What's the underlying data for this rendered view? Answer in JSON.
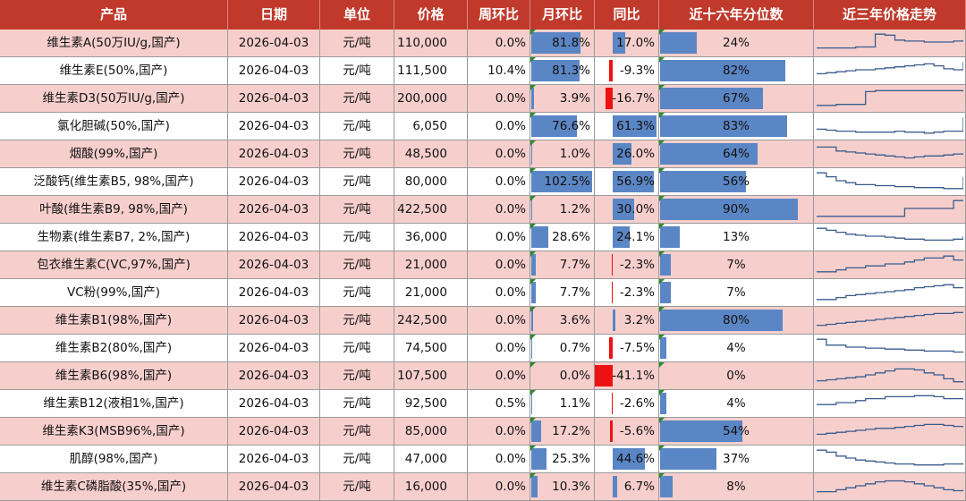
{
  "chart_data": {
    "type": "table",
    "columns": [
      "产品",
      "日期",
      "单位",
      "价格",
      "周环比",
      "月环比",
      "同比",
      "近十六年分位数",
      "近三年价格走势"
    ],
    "rows": [
      {
        "name": "维生素A(50万IU/g,国产)",
        "date": "2026-04-03",
        "unit": "元/吨",
        "price": "110,000",
        "wow": "0.0%",
        "mom": "81.8%",
        "mom_v": 81.8,
        "yoy": "17.0%",
        "yoy_v": 17.0,
        "pctl": "24%",
        "pctl_v": 24,
        "trend": [
          0.2,
          0.2,
          0.2,
          0.2,
          0.25,
          0.25,
          0.9,
          0.85,
          0.6,
          0.55,
          0.55,
          0.5,
          0.5,
          0.5,
          0.55,
          0.6
        ]
      },
      {
        "name": "维生素E(50%,国产)",
        "date": "2026-04-03",
        "unit": "元/吨",
        "price": "111,500",
        "wow": "10.4%",
        "mom": "81.3%",
        "mom_v": 81.3,
        "yoy": "-9.3%",
        "yoy_v": -9.3,
        "pctl": "82%",
        "pctl_v": 82,
        "trend": [
          0.3,
          0.35,
          0.4,
          0.45,
          0.5,
          0.5,
          0.55,
          0.6,
          0.65,
          0.7,
          0.75,
          0.8,
          0.7,
          0.55,
          0.5,
          0.9
        ]
      },
      {
        "name": "维生素D3(50万IU/g,国产)",
        "date": "2026-04-03",
        "unit": "元/吨",
        "price": "200,000",
        "wow": "0.0%",
        "mom": "3.9%",
        "mom_v": 3.9,
        "yoy": "-16.7%",
        "yoy_v": -16.7,
        "pctl": "67%",
        "pctl_v": 67,
        "trend": [
          0.1,
          0.1,
          0.15,
          0.15,
          0.15,
          0.8,
          0.85,
          0.85,
          0.85,
          0.85,
          0.85,
          0.85,
          0.85,
          0.85,
          0.85,
          0.8
        ]
      },
      {
        "name": "氯化胆碱(50%,国产)",
        "date": "2026-04-03",
        "unit": "元/吨",
        "price": "6,050",
        "wow": "0.0%",
        "mom": "76.6%",
        "mom_v": 76.6,
        "yoy": "61.3%",
        "yoy_v": 61.3,
        "pctl": "83%",
        "pctl_v": 83,
        "trend": [
          0.3,
          0.25,
          0.2,
          0.2,
          0.15,
          0.15,
          0.15,
          0.15,
          0.2,
          0.15,
          0.15,
          0.1,
          0.15,
          0.2,
          0.2,
          0.9
        ]
      },
      {
        "name": "烟酸(99%,国产)",
        "date": "2026-04-03",
        "unit": "元/吨",
        "price": "48,500",
        "wow": "0.0%",
        "mom": "1.0%",
        "mom_v": 1.0,
        "yoy": "26.0%",
        "yoy_v": 26.0,
        "pctl": "64%",
        "pctl_v": 64,
        "trend": [
          0.8,
          0.8,
          0.6,
          0.55,
          0.5,
          0.45,
          0.4,
          0.35,
          0.3,
          0.25,
          0.3,
          0.35,
          0.35,
          0.4,
          0.45,
          0.5
        ]
      },
      {
        "name": "泛酸钙(维生素B5, 98%,国产)",
        "date": "2026-04-03",
        "unit": "元/吨",
        "price": "80,000",
        "wow": "0.0%",
        "mom": "102.5%",
        "mom_v": 102.5,
        "yoy": "56.9%",
        "yoy_v": 56.9,
        "pctl": "56%",
        "pctl_v": 56,
        "trend": [
          0.9,
          0.7,
          0.5,
          0.4,
          0.3,
          0.3,
          0.25,
          0.25,
          0.2,
          0.2,
          0.15,
          0.15,
          0.15,
          0.1,
          0.1,
          0.7
        ]
      },
      {
        "name": "叶酸(维生素B9, 98%,国产)",
        "date": "2026-04-03",
        "unit": "元/吨",
        "price": "422,500",
        "wow": "0.0%",
        "mom": "1.2%",
        "mom_v": 1.2,
        "yoy": "30.0%",
        "yoy_v": 30.0,
        "pctl": "90%",
        "pctl_v": 90,
        "trend": [
          0.1,
          0.1,
          0.1,
          0.1,
          0.1,
          0.1,
          0.1,
          0.1,
          0.1,
          0.5,
          0.5,
          0.5,
          0.5,
          0.5,
          0.9,
          0.9
        ]
      },
      {
        "name": "生物素(维生素B7, 2%,国产)",
        "date": "2026-04-03",
        "unit": "元/吨",
        "price": "36,000",
        "wow": "0.0%",
        "mom": "28.6%",
        "mom_v": 28.6,
        "yoy": "24.1%",
        "yoy_v": 24.1,
        "pctl": "13%",
        "pctl_v": 13,
        "trend": [
          0.9,
          0.8,
          0.7,
          0.6,
          0.55,
          0.5,
          0.5,
          0.45,
          0.4,
          0.35,
          0.35,
          0.3,
          0.3,
          0.3,
          0.35,
          0.5
        ]
      },
      {
        "name": "包衣维生素C(VC,97%,国产)",
        "date": "2026-04-03",
        "unit": "元/吨",
        "price": "21,000",
        "wow": "0.0%",
        "mom": "7.7%",
        "mom_v": 7.7,
        "yoy": "-2.3%",
        "yoy_v": -2.3,
        "pctl": "7%",
        "pctl_v": 7,
        "trend": [
          0.1,
          0.1,
          0.2,
          0.3,
          0.3,
          0.4,
          0.4,
          0.5,
          0.5,
          0.6,
          0.7,
          0.8,
          0.8,
          0.9,
          0.7,
          0.7
        ]
      },
      {
        "name": "VC粉(99%,国产)",
        "date": "2026-04-03",
        "unit": "元/吨",
        "price": "21,000",
        "wow": "0.0%",
        "mom": "7.7%",
        "mom_v": 7.7,
        "yoy": "-2.3%",
        "yoy_v": -2.3,
        "pctl": "7%",
        "pctl_v": 7,
        "trend": [
          0.1,
          0.1,
          0.2,
          0.3,
          0.35,
          0.4,
          0.45,
          0.5,
          0.55,
          0.6,
          0.7,
          0.75,
          0.8,
          0.85,
          0.7,
          0.7
        ]
      },
      {
        "name": "维生素B1(98%,国产)",
        "date": "2026-04-03",
        "unit": "元/吨",
        "price": "242,500",
        "wow": "0.0%",
        "mom": "3.6%",
        "mom_v": 3.6,
        "yoy": "3.2%",
        "yoy_v": 3.2,
        "pctl": "80%",
        "pctl_v": 80,
        "trend": [
          0.2,
          0.25,
          0.3,
          0.35,
          0.4,
          0.45,
          0.5,
          0.55,
          0.6,
          0.65,
          0.7,
          0.75,
          0.8,
          0.8,
          0.85,
          0.85
        ]
      },
      {
        "name": "维生素B2(80%,国产)",
        "date": "2026-04-03",
        "unit": "元/吨",
        "price": "74,500",
        "wow": "0.0%",
        "mom": "0.7%",
        "mom_v": 0.7,
        "yoy": "-7.5%",
        "yoy_v": -7.5,
        "pctl": "4%",
        "pctl_v": 4,
        "trend": [
          0.9,
          0.6,
          0.6,
          0.5,
          0.5,
          0.45,
          0.45,
          0.4,
          0.4,
          0.35,
          0.35,
          0.3,
          0.3,
          0.3,
          0.25,
          0.25
        ]
      },
      {
        "name": "维生素B6(98%,国产)",
        "date": "2026-04-03",
        "unit": "元/吨",
        "price": "107,500",
        "wow": "0.0%",
        "mom": "0.0%",
        "mom_v": 0.0,
        "yoy": "-41.1%",
        "yoy_v": -41.1,
        "pctl": "0%",
        "pctl_v": 0,
        "trend": [
          0.2,
          0.25,
          0.3,
          0.35,
          0.4,
          0.5,
          0.6,
          0.7,
          0.8,
          0.8,
          0.75,
          0.6,
          0.5,
          0.3,
          0.15,
          0.1
        ]
      },
      {
        "name": "维生素B12(液相1%,国产)",
        "date": "2026-04-03",
        "unit": "元/吨",
        "price": "92,500",
        "wow": "0.5%",
        "mom": "1.1%",
        "mom_v": 1.1,
        "yoy": "-2.6%",
        "yoy_v": -2.6,
        "pctl": "4%",
        "pctl_v": 4,
        "trend": [
          0.4,
          0.4,
          0.5,
          0.5,
          0.6,
          0.7,
          0.7,
          0.8,
          0.8,
          0.8,
          0.85,
          0.85,
          0.8,
          0.7,
          0.7,
          0.65
        ]
      },
      {
        "name": "维生素K3(MSB96%,国产)",
        "date": "2026-04-03",
        "unit": "元/吨",
        "price": "85,000",
        "wow": "0.0%",
        "mom": "17.2%",
        "mom_v": 17.2,
        "yoy": "-5.6%",
        "yoy_v": -5.6,
        "pctl": "54%",
        "pctl_v": 54,
        "trend": [
          0.3,
          0.35,
          0.4,
          0.45,
          0.5,
          0.55,
          0.6,
          0.6,
          0.65,
          0.7,
          0.75,
          0.8,
          0.8,
          0.75,
          0.7,
          0.65
        ]
      },
      {
        "name": "肌醇(98%,国产)",
        "date": "2026-04-03",
        "unit": "元/吨",
        "price": "47,000",
        "wow": "0.0%",
        "mom": "25.3%",
        "mom_v": 25.3,
        "yoy": "44.6%",
        "yoy_v": 44.6,
        "pctl": "37%",
        "pctl_v": 37,
        "trend": [
          0.9,
          0.8,
          0.6,
          0.5,
          0.4,
          0.35,
          0.3,
          0.25,
          0.2,
          0.2,
          0.15,
          0.15,
          0.15,
          0.2,
          0.2,
          0.25
        ]
      },
      {
        "name": "维生素C磷脂酸(35%,国产)",
        "date": "2026-04-03",
        "unit": "元/吨",
        "price": "16,000",
        "wow": "0.0%",
        "mom": "10.3%",
        "mom_v": 10.3,
        "yoy": "6.7%",
        "yoy_v": 6.7,
        "pctl": "8%",
        "pctl_v": 8,
        "trend": [
          0.2,
          0.2,
          0.3,
          0.4,
          0.5,
          0.6,
          0.7,
          0.75,
          0.75,
          0.7,
          0.6,
          0.5,
          0.4,
          0.3,
          0.25,
          0.3
        ]
      }
    ]
  },
  "colors": {
    "header": "#c0392b",
    "odd_row": "#f6cfcc",
    "pos_bar": "#5b86c5",
    "neg_bar": "#ee1111",
    "trend_line": "#3a5c8c"
  }
}
